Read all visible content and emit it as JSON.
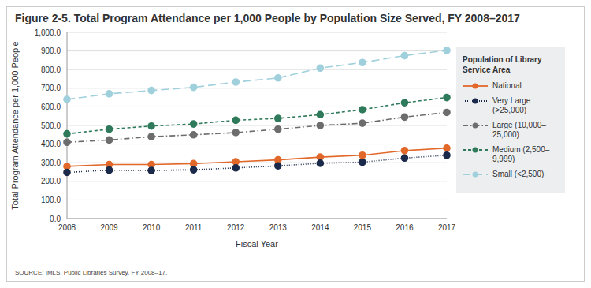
{
  "chart_data": {
    "type": "line",
    "title": "Figure 2-5. Total Program Attendance per 1,000 People by Population Size Served, FY 2008–2017",
    "x_label": "Fiscal Year",
    "y_label": "Total Program Attendance per 1,000 People",
    "legend_title": "Population of Library Service Area",
    "source": "SOURCE: IMLS, Public Libraries Survey, FY 2008–17.",
    "categories": [
      "2008",
      "2009",
      "2010",
      "2011",
      "2012",
      "2013",
      "2014",
      "2015",
      "2016",
      "2017"
    ],
    "series": [
      {
        "name": "National",
        "color": "#e2682a",
        "line_style": "solid",
        "marker": "circle",
        "values": [
          280,
          290,
          290,
          295,
          305,
          315,
          330,
          340,
          365,
          378
        ]
      },
      {
        "name": "Very Large (>25,000)",
        "color": "#1b2a4a",
        "line_style": "dotted",
        "marker": "circle",
        "values": [
          248,
          260,
          258,
          262,
          272,
          283,
          297,
          303,
          325,
          340
        ]
      },
      {
        "name": "Large (10,000–25,000)",
        "color": "#6d6d6d",
        "line_style": "dashdot",
        "marker": "circle",
        "values": [
          410,
          422,
          440,
          450,
          462,
          480,
          500,
          512,
          545,
          570
        ]
      },
      {
        "name": "Medium (2,500–9,999)",
        "color": "#2e7a5a",
        "line_style": "dashed",
        "marker": "circle",
        "values": [
          455,
          480,
          497,
          508,
          528,
          538,
          558,
          585,
          622,
          650
        ]
      },
      {
        "name": "Small (<2,500)",
        "color": "#9fd0dc",
        "line_style": "longdash",
        "marker": "circle",
        "values": [
          640,
          670,
          688,
          705,
          733,
          755,
          808,
          838,
          875,
          903
        ]
      }
    ],
    "ylim": [
      0,
      1000
    ],
    "yticks": [
      {
        "value": 0,
        "label": "0.0"
      },
      {
        "value": 100,
        "label": "100.0"
      },
      {
        "value": 200,
        "label": "200.0"
      },
      {
        "value": 300,
        "label": "300.0"
      },
      {
        "value": 400,
        "label": "400.0"
      },
      {
        "value": 500,
        "label": "500.0"
      },
      {
        "value": 600,
        "label": "600.0"
      },
      {
        "value": 700,
        "label": "700.0"
      },
      {
        "value": 800,
        "label": "800.0"
      },
      {
        "value": 900,
        "label": "900.0"
      },
      {
        "value": 1000,
        "label": "1,000.0"
      }
    ],
    "grid": true,
    "legend": "right"
  }
}
